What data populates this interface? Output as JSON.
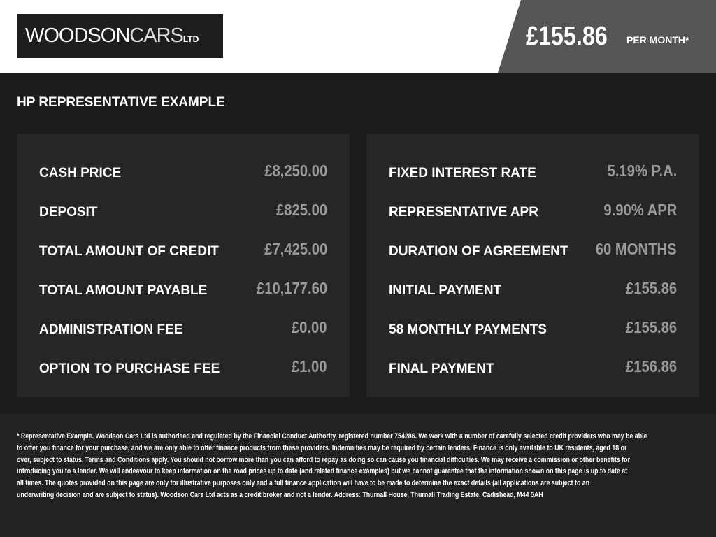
{
  "header": {
    "logo_text": "WOODSONCARS LTD",
    "logo_bold": "WOODSON",
    "logo_light": "CARS",
    "logo_ltd": "LTD",
    "monthly_price": "£155.86",
    "per_month": "PER MONTH*"
  },
  "title": "HP REPRESENTATIVE EXAMPLE",
  "left_panel": [
    {
      "label": "CASH PRICE",
      "value": "£8,250.00"
    },
    {
      "label": "DEPOSIT",
      "value": "£825.00"
    },
    {
      "label": "TOTAL AMOUNT OF CREDIT",
      "value": "£7,425.00"
    },
    {
      "label": "TOTAL AMOUNT PAYABLE",
      "value": "£10,177.60"
    },
    {
      "label": "ADMINISTRATION FEE",
      "value": "£0.00"
    },
    {
      "label": "OPTION TO PURCHASE FEE",
      "value": "£1.00"
    }
  ],
  "right_panel": [
    {
      "label": "FIXED INTEREST RATE",
      "value": "5.19% P.A."
    },
    {
      "label": "REPRESENTATIVE APR",
      "value": "9.90% APR"
    },
    {
      "label": "DURATION OF AGREEMENT",
      "value": "60 MONTHS"
    },
    {
      "label": "INITIAL PAYMENT",
      "value": "£155.86"
    },
    {
      "label": "58 MONTHLY PAYMENTS",
      "value": "£155.86"
    },
    {
      "label": "FINAL PAYMENT",
      "value": "£156.86"
    }
  ],
  "disclaimer_lines": [
    "* Representative Example. Woodson Cars Ltd is authorised and regulated by the Financial Conduct Authority, registered number 754286. We work with a number of carefully selected credit providers who may be able",
    "to offer you finance for your purchase, and we are only able to offer finance products from these providers. Indemnities may be required by certain lenders. Finance is only available to UK residents, aged 18 or",
    "over, subject to status. Terms and Conditions apply. You should not borrow more than you can afford to repay as doing so can cause you financial difficulties. We may receive a commission or other benefits for",
    "introducing you to a lender. We will endeavour to keep information on the road prices up to date (and related finance examples) but we cannot guarantee that the information shown on this page is up to date at",
    "all times. The quotes provided on this page are only for illustrative purposes only and a full finance application will have to be made to determine the exact details (all applications are subject to an",
    "underwriting decision and are subject to status). Woodson Cars Ltd acts as a credit broker and not a lender. Address: Thurnall House, Thurnall Trading Estate, Cadishead, M44 5AH"
  ]
}
